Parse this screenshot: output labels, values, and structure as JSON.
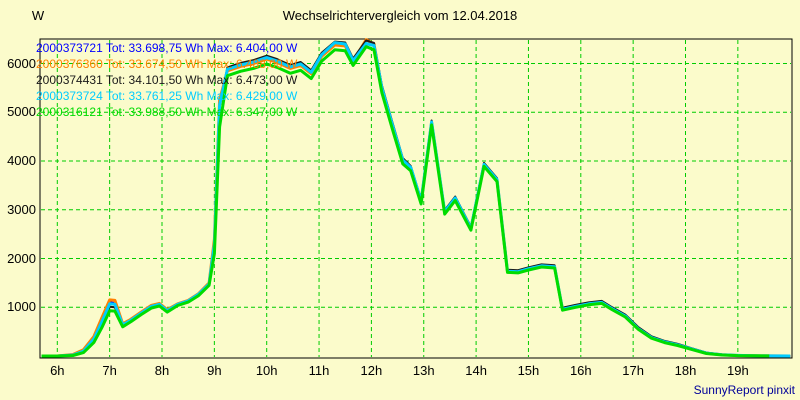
{
  "page": {
    "title": "Wechselrichtervergleich vom 12.04.2018",
    "footer": "SunnyReport pinxit",
    "background": "#FBFBCB",
    "footer_color": "#000099"
  },
  "chart_data": {
    "type": "line",
    "title": "Wechselrichtervergleich vom 12.04.2018",
    "xlabel": "",
    "ylabel": "W",
    "xlim": [
      5.7,
      20.05
    ],
    "ylim": [
      0,
      6520
    ],
    "grid": {
      "on": true,
      "color": "#00CC00",
      "dashed": true
    },
    "axis_color": "#000000",
    "legend_position": "top-left",
    "x_ticks": {
      "values": [
        6,
        7,
        8,
        9,
        10,
        11,
        12,
        13,
        14,
        15,
        16,
        17,
        18,
        19
      ],
      "labels": [
        "6h",
        "7h",
        "8h",
        "9h",
        "10h",
        "11h",
        "12h",
        "13h",
        "14h",
        "15h",
        "16h",
        "17h",
        "18h",
        "19h"
      ]
    },
    "y_ticks": {
      "values": [
        1000,
        2000,
        3000,
        4000,
        5000,
        6000
      ],
      "labels": [
        "1000",
        "2000",
        "3000",
        "4000",
        "5000",
        "6000"
      ]
    },
    "x": [
      5.7,
      6.0,
      6.3,
      6.5,
      6.7,
      6.85,
      7.0,
      7.1,
      7.25,
      7.4,
      7.6,
      7.8,
      7.95,
      8.1,
      8.3,
      8.5,
      8.7,
      8.9,
      9.0,
      9.1,
      9.25,
      9.5,
      9.75,
      10.0,
      10.2,
      10.45,
      10.65,
      10.85,
      11.05,
      11.3,
      11.5,
      11.65,
      11.9,
      12.05,
      12.2,
      12.4,
      12.6,
      12.75,
      12.95,
      13.15,
      13.4,
      13.6,
      13.9,
      14.15,
      14.4,
      14.6,
      14.8,
      15.0,
      15.25,
      15.5,
      15.65,
      15.9,
      16.15,
      16.4,
      16.6,
      16.85,
      17.1,
      17.35,
      17.6,
      17.85,
      18.1,
      18.4,
      18.7,
      19.0,
      19.3,
      19.6,
      20.0
    ],
    "series": [
      {
        "name": "2000373721",
        "color": "#0000FF",
        "width": 2,
        "tot_wh": "33.698,75",
        "max_w": "6.404,00",
        "values": [
          0,
          0,
          25,
          110,
          360,
          720,
          1100,
          1090,
          650,
          740,
          890,
          1030,
          1070,
          940,
          1065,
          1135,
          1275,
          1490,
          2350,
          5200,
          5900,
          5990,
          6050,
          6140,
          6070,
          5950,
          6010,
          5840,
          6200,
          6404,
          6390,
          6080,
          6400,
          6360,
          5520,
          4770,
          4040,
          3880,
          3190,
          4810,
          2970,
          3250,
          2630,
          3940,
          3630,
          1750,
          1740,
          1800,
          1860,
          1840,
          970,
          1030,
          1080,
          1110,
          980,
          830,
          570,
          390,
          295,
          235,
          155,
          62,
          26,
          12,
          6,
          3,
          0
        ]
      },
      {
        "name": "2000376360",
        "color": "#FF8000",
        "width": 3,
        "tot_wh": "33.674,50",
        "max_w": "6.488,00",
        "values": [
          0,
          0,
          30,
          130,
          400,
          780,
          1150,
          1140,
          660,
          750,
          900,
          1040,
          1080,
          950,
          1070,
          1140,
          1280,
          1500,
          2400,
          5250,
          5850,
          5940,
          6000,
          6090,
          6020,
          5900,
          5960,
          5790,
          6150,
          6380,
          6360,
          6050,
          6488,
          6400,
          5490,
          4740,
          4010,
          3860,
          3170,
          4790,
          2950,
          3230,
          2610,
          3920,
          3610,
          1735,
          1725,
          1785,
          1845,
          1825,
          955,
          1015,
          1065,
          1095,
          965,
          815,
          555,
          375,
          285,
          225,
          148,
          58,
          24,
          11,
          5,
          2,
          0
        ]
      },
      {
        "name": "2000374431",
        "color": "#1A1A1A",
        "width": 2,
        "tot_wh": "34.101,50",
        "max_w": "6.473,00",
        "values": [
          0,
          0,
          15,
          90,
          330,
          660,
          1010,
          1000,
          620,
          715,
          865,
          1005,
          1045,
          915,
          1050,
          1120,
          1260,
          1470,
          2280,
          5100,
          5920,
          6010,
          6070,
          6160,
          6090,
          5970,
          6030,
          5860,
          6220,
          6450,
          6430,
          6100,
          6473,
          6420,
          5550,
          4800,
          4060,
          3900,
          3210,
          4830,
          2990,
          3270,
          2650,
          3960,
          3650,
          1770,
          1760,
          1820,
          1880,
          1860,
          990,
          1050,
          1100,
          1130,
          1000,
          850,
          590,
          405,
          310,
          250,
          165,
          70,
          30,
          14,
          7,
          3,
          0
        ]
      },
      {
        "name": "2000373724",
        "color": "#00CCFF",
        "width": 3,
        "tot_wh": "33.761,25",
        "max_w": "6.429,00",
        "values": [
          0,
          0,
          20,
          100,
          350,
          700,
          1070,
          1060,
          640,
          730,
          880,
          1020,
          1060,
          930,
          1060,
          1130,
          1270,
          1480,
          2300,
          5150,
          5880,
          5970,
          6030,
          6120,
          6050,
          5930,
          5990,
          5820,
          6180,
          6429,
          6400,
          6060,
          6410,
          6370,
          5500,
          4750,
          4020,
          3870,
          3180,
          4800,
          2960,
          3240,
          2620,
          3930,
          3620,
          1740,
          1730,
          1790,
          1850,
          1830,
          960,
          1020,
          1070,
          1100,
          970,
          820,
          560,
          380,
          290,
          230,
          150,
          60,
          25,
          12,
          6,
          3,
          0
        ]
      },
      {
        "name": "2000316121",
        "color": "#00DC00",
        "width": 3,
        "tot_wh": "33.988,50",
        "max_w": "6.347,00",
        "values": [
          0,
          0,
          10,
          70,
          280,
          580,
          930,
          920,
          600,
          700,
          850,
          985,
          1025,
          900,
          1035,
          1105,
          1240,
          1450,
          2100,
          4700,
          5750,
          5840,
          5900,
          5990,
          5920,
          5800,
          5860,
          5690,
          6050,
          6280,
          6260,
          5960,
          6347,
          6280,
          5400,
          4660,
          3940,
          3800,
          3120,
          4740,
          2910,
          3190,
          2580,
          3890,
          3580,
          1715,
          1705,
          1765,
          1825,
          1805,
          940,
          1000,
          1050,
          1080,
          950,
          800,
          545,
          365,
          275,
          215,
          140,
          52,
          20,
          9,
          4,
          2,
          null
        ]
      }
    ],
    "legend": {
      "items": [
        {
          "text": "2000373721 Tot: 33.698,75 Wh Max: 6.404,00 W",
          "color": "#0000FF"
        },
        {
          "text": "2000376360 Tot: 33.674,50 Wh Max: 6.488,00 W",
          "color": "#FF8000"
        },
        {
          "text": "2000374431 Tot: 34.101,50 Wh Max: 6.473,00 W",
          "color": "#1A1A1A"
        },
        {
          "text": "2000373724 Tot: 33.761,25 Wh Max: 6.429,00 W",
          "color": "#00CCFF"
        },
        {
          "text": "2000316121 Tot: 33.988,50 Wh Max: 6.347,00 W",
          "color": "#00DC00"
        }
      ]
    }
  }
}
